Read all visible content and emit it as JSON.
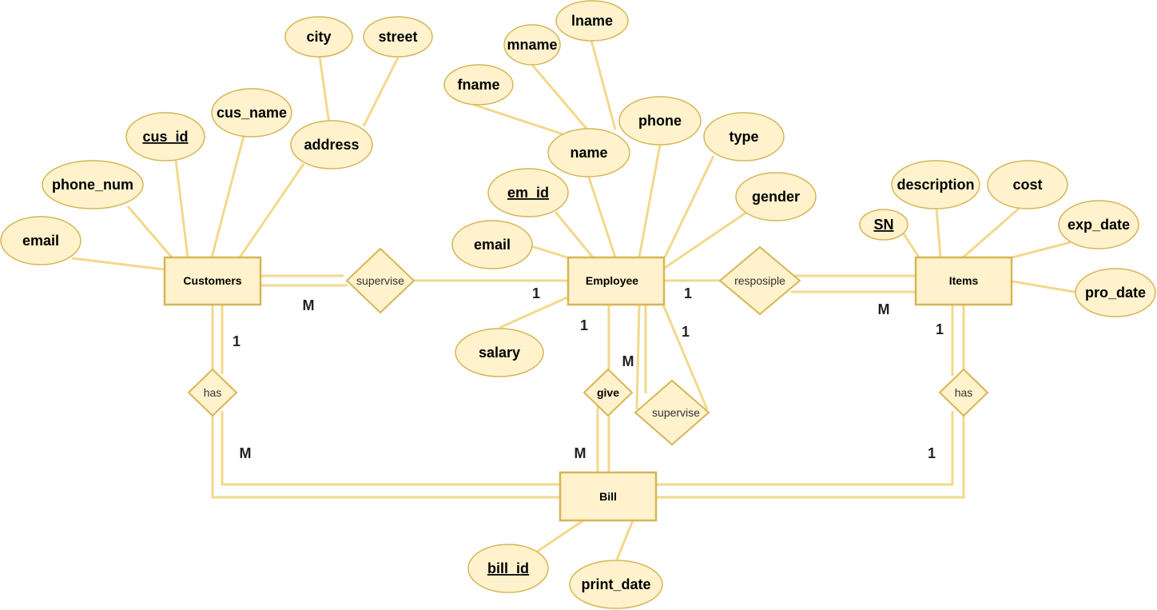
{
  "entities": {
    "customers": "Customers",
    "employee": "Employee",
    "items": "Items",
    "bill": "Bill"
  },
  "relationships": {
    "supervise_cust": "supervise",
    "resposiple": "resposiple",
    "has_left": "has",
    "give": "give",
    "supervise_emp": "supervise",
    "has_right": "has"
  },
  "attributes": {
    "city": "city",
    "street": "street",
    "cus_name": "cus_name",
    "cus_id": "cus_id",
    "address": "address",
    "phone_num": "phone_num",
    "email_cust": "email",
    "lname": "lname",
    "mname": "mname",
    "fname": "fname",
    "name": "name",
    "phone": "phone",
    "type": "type",
    "em_id": "em_id",
    "gender": "gender",
    "email_emp": "email",
    "salary": "salary",
    "sn": "SN",
    "description": "description",
    "cost": "cost",
    "exp_date": "exp_date",
    "pro_date": "pro_date",
    "bill_id": "bill_id",
    "print_date": "print_date"
  },
  "cardinalities": {
    "cust_supervise": "M",
    "emp_supervise": "1",
    "emp_resposiple": "1",
    "items_resposiple": "M",
    "cust_has": "1",
    "bill_has_left": "M",
    "emp_give": "1",
    "give_top": "M",
    "bill_give": "M",
    "emp_supervise_self": "1",
    "items_has": "1",
    "bill_has_right": "1"
  },
  "colors": {
    "fill": "#fff2cc",
    "stroke": "#d6b656",
    "line": "#f2d98a"
  }
}
